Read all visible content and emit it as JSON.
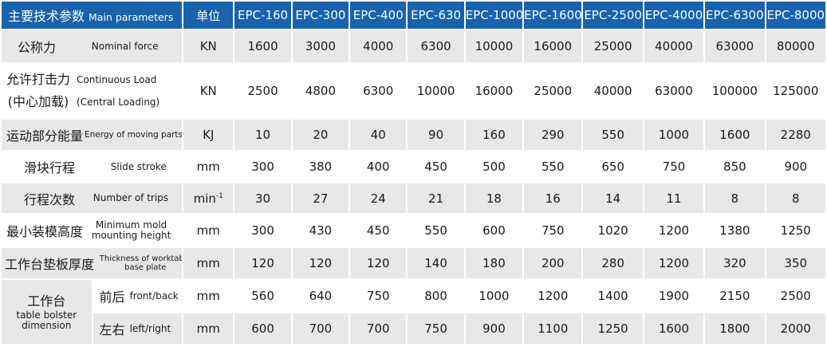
{
  "header": {
    "param_zh": "主要技术参数",
    "param_en": "Main parameters",
    "unit": "单位",
    "models": [
      "EPC-160",
      "EPC-300",
      "EPC-400",
      "EPC-630",
      "EPC-1000",
      "EPC-1600",
      "EPC-2500",
      "EPC-4000",
      "EPC-6300",
      "EPC-8000"
    ]
  },
  "rows": [
    {
      "zh": "公称力",
      "en": "Nominal force",
      "unit": "KN",
      "values": [
        "1600",
        "3000",
        "4000",
        "6300",
        "10000",
        "16000",
        "25000",
        "40000",
        "63000",
        "80000"
      ]
    },
    {
      "zh1": "允许打击力",
      "zh2": "(中心加载)",
      "en1": "Continuous  Load",
      "en2": "(Central Loading)",
      "unit": "KN",
      "values": [
        "2500",
        "4800",
        "6300",
        "10000",
        "16000",
        "25000",
        "40000",
        "63000",
        "100000",
        "125000"
      ]
    },
    {
      "zh": "运动部分能量",
      "en": "Energy of moving parts",
      "unit": "KJ",
      "values": [
        "10",
        "20",
        "40",
        "90",
        "160",
        "290",
        "550",
        "1000",
        "1600",
        "2280"
      ]
    },
    {
      "zh": "滑块行程",
      "en": "Slide stroke",
      "unit": "mm",
      "values": [
        "300",
        "380",
        "400",
        "450",
        "500",
        "550",
        "650",
        "750",
        "850",
        "900"
      ]
    },
    {
      "zh": "行程次数",
      "en": "Number of trips",
      "unit": "min",
      "unit_sup": "-1",
      "values": [
        "30",
        "27",
        "24",
        "21",
        "18",
        "16",
        "14",
        "11",
        "8",
        "8"
      ]
    },
    {
      "zh": "最小装模高度",
      "en1": "Minimum mold",
      "en2": "mounting height",
      "unit": "mm",
      "values": [
        "300",
        "430",
        "450",
        "550",
        "600",
        "750",
        "1020",
        "1200",
        "1380",
        "1250"
      ]
    },
    {
      "zh": "工作台垫板厚度",
      "en1": "Thickness of worktable",
      "en2": "base plate",
      "unit": "mm",
      "values": [
        "120",
        "120",
        "120",
        "140",
        "180",
        "200",
        "280",
        "1200",
        "320",
        "350"
      ]
    }
  ],
  "table_bolster": {
    "zh": "工作台",
    "en1": "table bolster",
    "en2": "dimension",
    "front": {
      "zh": "前后",
      "en": "front/back",
      "unit": "mm",
      "values": [
        "560",
        "640",
        "750",
        "800",
        "1000",
        "1200",
        "1400",
        "1900",
        "2150",
        "2500"
      ]
    },
    "left": {
      "zh": "左右",
      "en": "left/right",
      "unit": "mm",
      "values": [
        "600",
        "700",
        "700",
        "750",
        "900",
        "1100",
        "1250",
        "1600",
        "1800",
        "2000"
      ]
    }
  }
}
